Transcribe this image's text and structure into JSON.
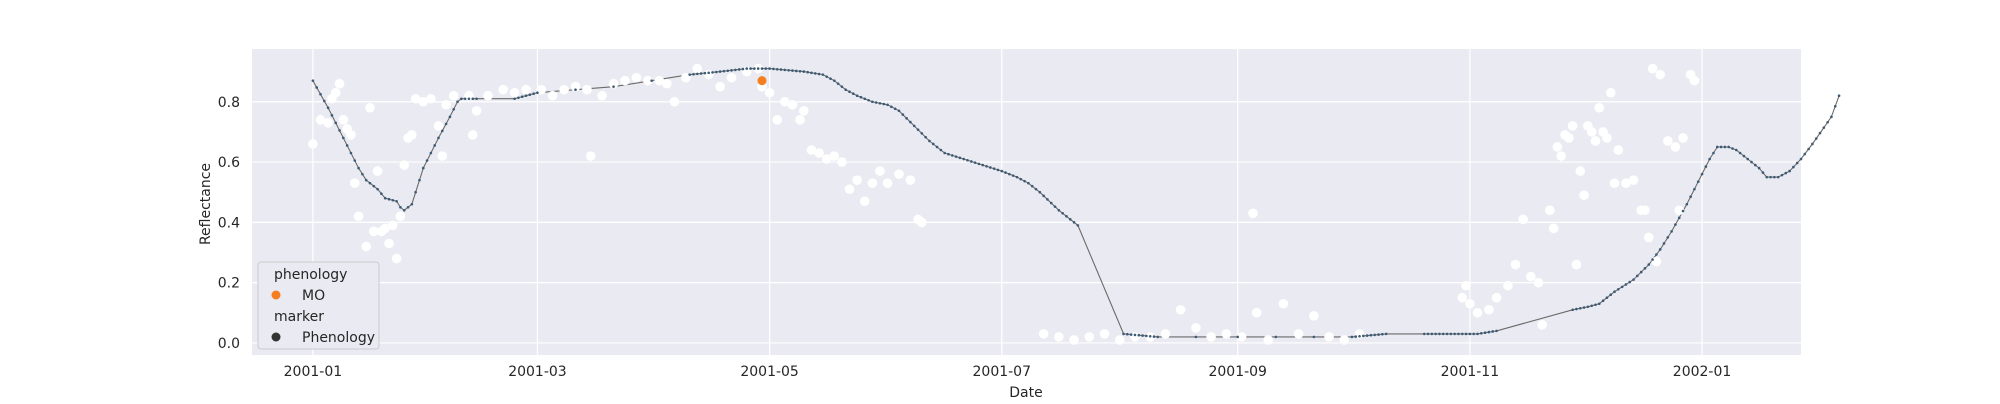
{
  "chart_data": {
    "type": "line",
    "title": "",
    "xlabel": "Date",
    "ylabel": "Reflectance",
    "xlim": [
      "2000-12-16",
      "2002-01-27"
    ],
    "ylim": [
      -0.04,
      0.975
    ],
    "x_ticks": [
      "2001-01",
      "2001-03",
      "2001-05",
      "2001-07",
      "2001-09",
      "2001-11",
      "2002-01"
    ],
    "y_ticks": [
      0.0,
      0.2,
      0.4,
      0.6,
      0.8
    ],
    "y_tick_labels": [
      "0.0",
      "0.2",
      "0.4",
      "0.6",
      "0.8"
    ],
    "grid": true,
    "legend_position": "lower-left",
    "legend": {
      "hue_title": "phenology",
      "hue_entry": "MO",
      "marker_title": "marker",
      "marker_entry": "Phenology"
    },
    "colors": {
      "background": "#eaeaf2",
      "grid": "#ffffff",
      "curve": "#4a6478",
      "curve_dot": "#3d5a73",
      "observation": "#ffffff",
      "phenology": "#f47e20",
      "legend_marker": "#333333"
    },
    "series": [
      {
        "name": "",
        "kind": "line",
        "points": [
          [
            "2001-01-01",
            0.87
          ],
          [
            "2001-01-05",
            0.78
          ],
          [
            "2001-01-09",
            0.68
          ],
          [
            "2001-01-13",
            0.58
          ],
          [
            "2001-01-15",
            0.54
          ],
          [
            "2001-01-18",
            0.51
          ],
          [
            "2001-01-20",
            0.48
          ],
          [
            "2001-01-23",
            0.47
          ],
          [
            "2001-01-24",
            0.45
          ],
          [
            "2001-01-25",
            0.44
          ],
          [
            "2001-01-27",
            0.46
          ],
          [
            "2001-01-30",
            0.58
          ],
          [
            "2001-02-03",
            0.68
          ],
          [
            "2001-02-06",
            0.75
          ],
          [
            "2001-02-08",
            0.8
          ],
          [
            "2001-02-09",
            0.81
          ],
          [
            "2001-02-13",
            0.81
          ],
          [
            "2001-02-23",
            0.81
          ],
          [
            "2001-03-01",
            0.83
          ],
          [
            "2001-03-11",
            0.84
          ],
          [
            "2001-03-21",
            0.85
          ],
          [
            "2001-03-31",
            0.87
          ],
          [
            "2001-04-10",
            0.89
          ],
          [
            "2001-04-18",
            0.9
          ],
          [
            "2001-04-25",
            0.91
          ],
          [
            "2001-05-01",
            0.91
          ],
          [
            "2001-05-10",
            0.9
          ],
          [
            "2001-05-15",
            0.89
          ],
          [
            "2001-05-18",
            0.87
          ],
          [
            "2001-05-21",
            0.84
          ],
          [
            "2001-05-24",
            0.82
          ],
          [
            "2001-05-28",
            0.8
          ],
          [
            "2001-06-01",
            0.79
          ],
          [
            "2001-06-04",
            0.77
          ],
          [
            "2001-06-08",
            0.72
          ],
          [
            "2001-06-12",
            0.67
          ],
          [
            "2001-06-16",
            0.63
          ],
          [
            "2001-06-21",
            0.61
          ],
          [
            "2001-06-26",
            0.59
          ],
          [
            "2001-07-01",
            0.57
          ],
          [
            "2001-07-05",
            0.55
          ],
          [
            "2001-07-08",
            0.53
          ],
          [
            "2001-07-11",
            0.5
          ],
          [
            "2001-07-16",
            0.44
          ],
          [
            "2001-07-21",
            0.39
          ],
          [
            "2001-08-02",
            0.03
          ],
          [
            "2001-08-11",
            0.02
          ],
          [
            "2001-08-21",
            0.02
          ],
          [
            "2001-09-01",
            0.02
          ],
          [
            "2001-09-11",
            0.02
          ],
          [
            "2001-09-21",
            0.02
          ],
          [
            "2001-10-01",
            0.02
          ],
          [
            "2001-10-10",
            0.03
          ],
          [
            "2001-10-20",
            0.03
          ],
          [
            "2001-10-26",
            0.03
          ],
          [
            "2001-10-30",
            0.03
          ],
          [
            "2001-11-03",
            0.03
          ],
          [
            "2001-11-08",
            0.04
          ],
          [
            "2001-11-28",
            0.11
          ],
          [
            "2001-12-02",
            0.12
          ],
          [
            "2001-12-05",
            0.13
          ],
          [
            "2001-12-09",
            0.17
          ],
          [
            "2001-12-14",
            0.21
          ],
          [
            "2001-12-18",
            0.26
          ],
          [
            "2001-12-21",
            0.31
          ],
          [
            "2001-12-24",
            0.37
          ],
          [
            "2001-12-28",
            0.46
          ],
          [
            "2002-01-01",
            0.56
          ],
          [
            "2002-01-03",
            0.61
          ],
          [
            "2002-01-05",
            0.65
          ],
          [
            "2002-01-08",
            0.65
          ],
          [
            "2002-01-10",
            0.64
          ],
          [
            "2002-01-13",
            0.61
          ],
          [
            "2002-01-16",
            0.58
          ],
          [
            "2002-01-18",
            0.55
          ],
          [
            "2002-01-21",
            0.55
          ],
          [
            "2002-01-24",
            0.57
          ],
          [
            "2002-01-27",
            0.61
          ],
          [
            "2002-01-30",
            0.66
          ],
          [
            "2002-02-04",
            0.75
          ],
          [
            "2002-02-06",
            0.82
          ]
        ]
      },
      {
        "name": "",
        "kind": "scatter",
        "points": [
          [
            "2001-01-01",
            0.66
          ],
          [
            "2001-01-03",
            0.74
          ],
          [
            "2001-01-05",
            0.73
          ],
          [
            "2001-01-06",
            0.81
          ],
          [
            "2001-01-07",
            0.83
          ],
          [
            "2001-01-08",
            0.86
          ],
          [
            "2001-01-09",
            0.74
          ],
          [
            "2001-01-10",
            0.71
          ],
          [
            "2001-01-11",
            0.69
          ],
          [
            "2001-01-12",
            0.53
          ],
          [
            "2001-01-13",
            0.42
          ],
          [
            "2001-01-15",
            0.32
          ],
          [
            "2001-01-16",
            0.78
          ],
          [
            "2001-01-17",
            0.37
          ],
          [
            "2001-01-18",
            0.57
          ],
          [
            "2001-01-19",
            0.37
          ],
          [
            "2001-01-20",
            0.38
          ],
          [
            "2001-01-21",
            0.33
          ],
          [
            "2001-01-22",
            0.39
          ],
          [
            "2001-01-23",
            0.28
          ],
          [
            "2001-01-24",
            0.42
          ],
          [
            "2001-01-25",
            0.59
          ],
          [
            "2001-01-26",
            0.68
          ],
          [
            "2001-01-27",
            0.69
          ],
          [
            "2001-01-28",
            0.81
          ],
          [
            "2001-01-30",
            0.8
          ],
          [
            "2001-02-01",
            0.81
          ],
          [
            "2001-02-03",
            0.72
          ],
          [
            "2001-02-04",
            0.62
          ],
          [
            "2001-02-05",
            0.79
          ],
          [
            "2001-02-07",
            0.82
          ],
          [
            "2001-02-11",
            0.82
          ],
          [
            "2001-02-12",
            0.69
          ],
          [
            "2001-02-13",
            0.77
          ],
          [
            "2001-02-16",
            0.82
          ],
          [
            "2001-02-20",
            0.84
          ],
          [
            "2001-02-23",
            0.83
          ],
          [
            "2001-02-26",
            0.84
          ],
          [
            "2001-03-02",
            0.84
          ],
          [
            "2001-03-05",
            0.82
          ],
          [
            "2001-03-08",
            0.84
          ],
          [
            "2001-03-11",
            0.85
          ],
          [
            "2001-03-14",
            0.84
          ],
          [
            "2001-03-15",
            0.62
          ],
          [
            "2001-03-18",
            0.82
          ],
          [
            "2001-03-21",
            0.86
          ],
          [
            "2001-03-24",
            0.87
          ],
          [
            "2001-03-27",
            0.88
          ],
          [
            "2001-03-30",
            0.87
          ],
          [
            "2001-04-02",
            0.87
          ],
          [
            "2001-04-04",
            0.86
          ],
          [
            "2001-04-06",
            0.8
          ],
          [
            "2001-04-09",
            0.88
          ],
          [
            "2001-04-12",
            0.91
          ],
          [
            "2001-04-15",
            0.89
          ],
          [
            "2001-04-18",
            0.85
          ],
          [
            "2001-04-21",
            0.88
          ],
          [
            "2001-04-25",
            0.9
          ],
          [
            "2001-04-28",
            0.91
          ],
          [
            "2001-04-29",
            0.85
          ],
          [
            "2001-05-01",
            0.83
          ],
          [
            "2001-05-03",
            0.74
          ],
          [
            "2001-05-05",
            0.8
          ],
          [
            "2001-05-07",
            0.79
          ],
          [
            "2001-05-09",
            0.74
          ],
          [
            "2001-05-10",
            0.77
          ],
          [
            "2001-05-12",
            0.64
          ],
          [
            "2001-05-14",
            0.63
          ],
          [
            "2001-05-16",
            0.61
          ],
          [
            "2001-05-18",
            0.62
          ],
          [
            "2001-05-20",
            0.6
          ],
          [
            "2001-05-22",
            0.51
          ],
          [
            "2001-05-24",
            0.54
          ],
          [
            "2001-05-26",
            0.47
          ],
          [
            "2001-05-28",
            0.53
          ],
          [
            "2001-05-30",
            0.57
          ],
          [
            "2001-06-01",
            0.53
          ],
          [
            "2001-06-04",
            0.56
          ],
          [
            "2001-06-07",
            0.54
          ],
          [
            "2001-06-09",
            0.41
          ],
          [
            "2001-06-10",
            0.4
          ],
          [
            "2001-07-12",
            0.03
          ],
          [
            "2001-07-16",
            0.02
          ],
          [
            "2001-07-20",
            0.01
          ],
          [
            "2001-07-24",
            0.02
          ],
          [
            "2001-07-28",
            0.03
          ],
          [
            "2001-08-01",
            0.01
          ],
          [
            "2001-08-05",
            0.02
          ],
          [
            "2001-08-09",
            0.02
          ],
          [
            "2001-08-13",
            0.03
          ],
          [
            "2001-08-17",
            0.11
          ],
          [
            "2001-08-21",
            0.05
          ],
          [
            "2001-08-25",
            0.02
          ],
          [
            "2001-08-29",
            0.03
          ],
          [
            "2001-09-02",
            0.02
          ],
          [
            "2001-09-05",
            0.43
          ],
          [
            "2001-09-06",
            0.1
          ],
          [
            "2001-09-09",
            0.01
          ],
          [
            "2001-09-13",
            0.13
          ],
          [
            "2001-09-17",
            0.03
          ],
          [
            "2001-09-21",
            0.09
          ],
          [
            "2001-09-25",
            0.02
          ],
          [
            "2001-09-29",
            0.01
          ],
          [
            "2001-10-03",
            0.03
          ],
          [
            "2001-10-30",
            0.15
          ],
          [
            "2001-10-31",
            0.19
          ],
          [
            "2001-11-01",
            0.13
          ],
          [
            "2001-11-03",
            0.1
          ],
          [
            "2001-11-06",
            0.11
          ],
          [
            "2001-11-08",
            0.15
          ],
          [
            "2001-11-11",
            0.19
          ],
          [
            "2001-11-13",
            0.26
          ],
          [
            "2001-11-15",
            0.41
          ],
          [
            "2001-11-17",
            0.22
          ],
          [
            "2001-11-19",
            0.2
          ],
          [
            "2001-11-20",
            0.06
          ],
          [
            "2001-11-22",
            0.44
          ],
          [
            "2001-11-23",
            0.38
          ],
          [
            "2001-11-24",
            0.65
          ],
          [
            "2001-11-25",
            0.62
          ],
          [
            "2001-11-26",
            0.69
          ],
          [
            "2001-11-27",
            0.68
          ],
          [
            "2001-11-28",
            0.72
          ],
          [
            "2001-11-29",
            0.26
          ],
          [
            "2001-11-30",
            0.57
          ],
          [
            "2001-12-01",
            0.49
          ],
          [
            "2001-12-02",
            0.72
          ],
          [
            "2001-12-03",
            0.7
          ],
          [
            "2001-12-04",
            0.67
          ],
          [
            "2001-12-05",
            0.78
          ],
          [
            "2001-12-06",
            0.7
          ],
          [
            "2001-12-07",
            0.68
          ],
          [
            "2001-12-08",
            0.83
          ],
          [
            "2001-12-09",
            0.53
          ],
          [
            "2001-12-10",
            0.64
          ],
          [
            "2001-12-12",
            0.53
          ],
          [
            "2001-12-14",
            0.54
          ],
          [
            "2001-12-16",
            0.44
          ],
          [
            "2001-12-17",
            0.44
          ],
          [
            "2001-12-18",
            0.35
          ],
          [
            "2001-12-19",
            0.91
          ],
          [
            "2001-12-20",
            0.27
          ],
          [
            "2001-12-21",
            0.89
          ],
          [
            "2001-12-23",
            0.67
          ],
          [
            "2001-12-25",
            0.65
          ],
          [
            "2001-12-26",
            0.44
          ],
          [
            "2001-12-27",
            0.68
          ],
          [
            "2001-12-29",
            0.89
          ],
          [
            "2001-12-30",
            0.87
          ]
        ]
      },
      {
        "name": "MO",
        "kind": "marker",
        "points": [
          [
            "2001-04-29",
            0.87
          ]
        ]
      }
    ]
  }
}
